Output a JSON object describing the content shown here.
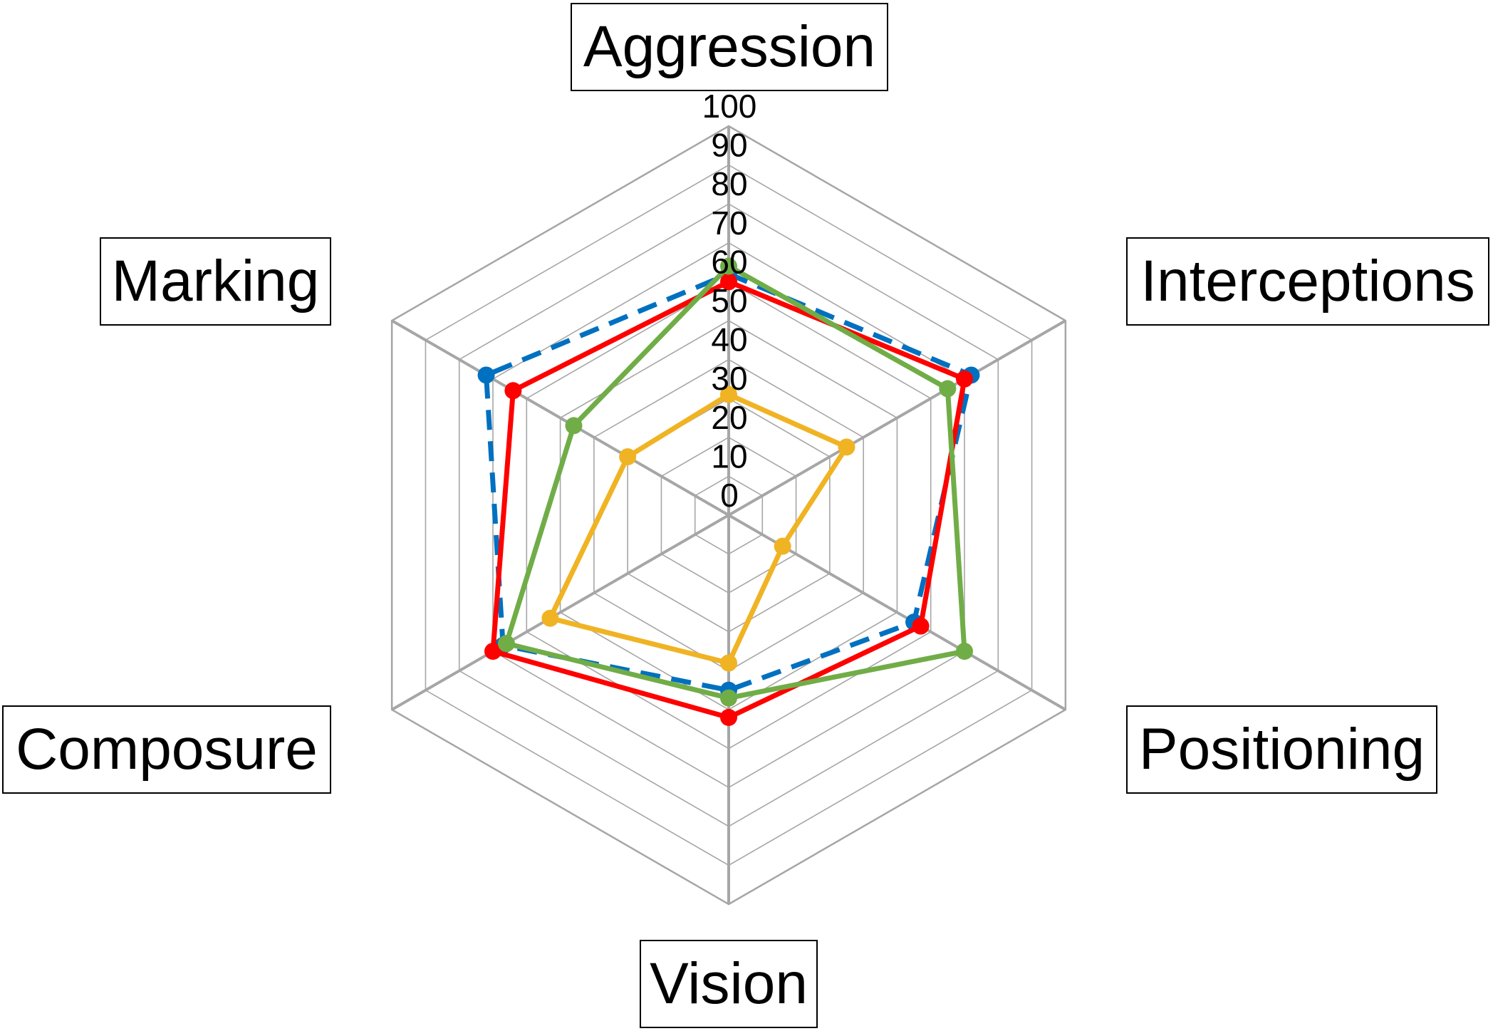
{
  "chart_data": {
    "type": "radar",
    "title": "",
    "categories": [
      "Aggression",
      "Interceptions",
      "Positioning",
      "Vision",
      "Composure",
      "Marking"
    ],
    "rlim": [
      0,
      100
    ],
    "ticks": [
      "0",
      "10",
      "20",
      "30",
      "40",
      "50",
      "60",
      "70",
      "80",
      "90",
      "100"
    ],
    "grid": true,
    "legend": "none",
    "series": [
      {
        "color": "#0070C0",
        "dash": true,
        "values": [
          62,
          72,
          55,
          45,
          67,
          72
        ]
      },
      {
        "color": "#FF0000",
        "dash": false,
        "values": [
          60,
          70,
          57,
          52,
          70,
          64
        ]
      },
      {
        "color": "#70AD47",
        "dash": false,
        "values": [
          64,
          65,
          70,
          47,
          66,
          46
        ]
      },
      {
        "color": "#F0B323",
        "dash": false,
        "values": [
          31,
          35,
          16,
          38,
          53,
          30
        ]
      }
    ]
  }
}
